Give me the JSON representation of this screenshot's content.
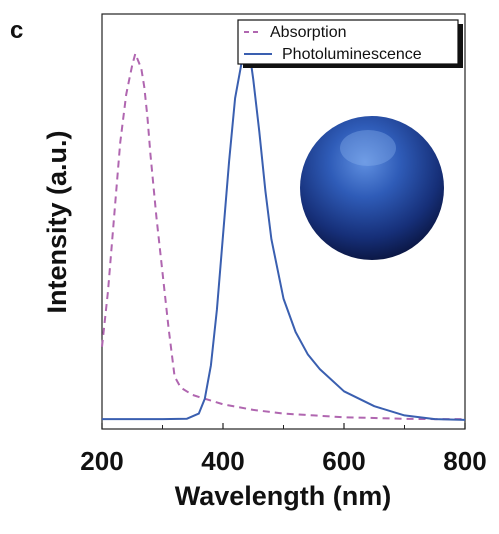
{
  "panel_label": "c",
  "chart_data": {
    "type": "line",
    "xlabel": "Wavelength (nm)",
    "ylabel": "Intensity (a.u.)",
    "xlim": [
      200,
      800
    ],
    "ylim": [
      0,
      1.05
    ],
    "x_ticks": [
      200,
      400,
      600,
      800
    ],
    "y_ticks_labeled": false,
    "grid": false,
    "legend_position": "top-right",
    "inset": "photo of a blue-glowing sphere",
    "series": [
      {
        "name": "Absorption",
        "style": "dashed",
        "color": "#b066b0",
        "x": [
          200,
          210,
          220,
          230,
          240,
          245,
          250,
          255,
          260,
          265,
          270,
          275,
          280,
          290,
          300,
          310,
          320,
          330,
          340,
          350,
          360,
          380,
          400,
          450,
          500,
          550,
          600,
          650,
          700,
          750,
          800
        ],
        "y": [
          0.2,
          0.35,
          0.55,
          0.75,
          0.88,
          0.92,
          0.96,
          0.99,
          0.97,
          0.95,
          0.9,
          0.82,
          0.72,
          0.55,
          0.4,
          0.25,
          0.12,
          0.09,
          0.08,
          0.07,
          0.065,
          0.055,
          0.045,
          0.03,
          0.02,
          0.015,
          0.01,
          0.008,
          0.006,
          0.005,
          0.005
        ]
      },
      {
        "name": "Photoluminescence",
        "style": "solid",
        "color": "#3a5fb0",
        "x": [
          200,
          250,
          300,
          340,
          360,
          370,
          380,
          390,
          400,
          410,
          420,
          430,
          440,
          445,
          450,
          460,
          470,
          480,
          500,
          520,
          540,
          560,
          600,
          650,
          700,
          750,
          800
        ],
        "y": [
          0.005,
          0.005,
          0.005,
          0.006,
          0.02,
          0.06,
          0.15,
          0.3,
          0.5,
          0.7,
          0.87,
          0.96,
          1.0,
          0.98,
          0.92,
          0.78,
          0.62,
          0.49,
          0.33,
          0.24,
          0.18,
          0.14,
          0.08,
          0.04,
          0.015,
          0.005,
          0.003
        ]
      }
    ]
  }
}
